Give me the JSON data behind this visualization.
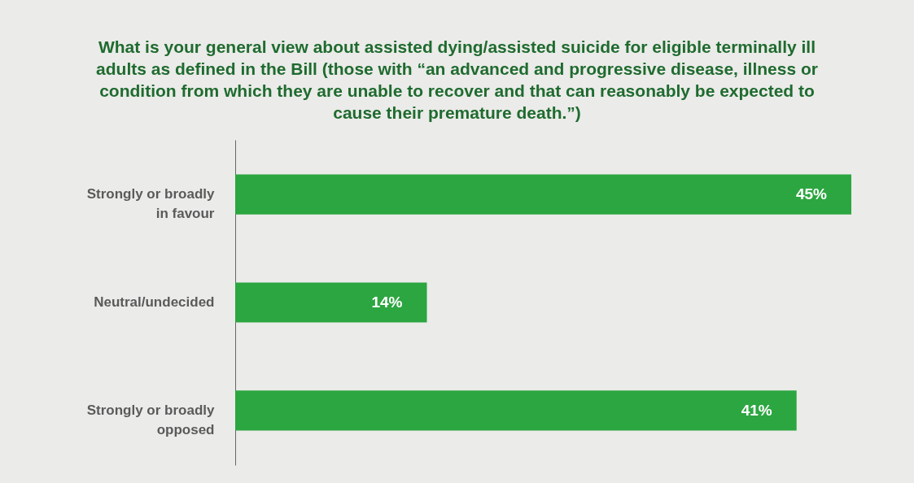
{
  "chart_data": {
    "type": "bar",
    "orientation": "horizontal",
    "title": "What is your general view about assisted dying/assisted suicide for eligible terminally ill adults as defined in the Bill (those with “an advanced and progressive disease, illness or condition from which they are unable to recover and that can reasonably be expected to cause their premature death.”)",
    "categories": [
      "Strongly or broadly in favour",
      "Neutral/undecided",
      "Strongly or broadly opposed"
    ],
    "values": [
      45,
      14,
      41
    ],
    "color": "#2ca640",
    "value_labels": [
      "45%",
      "14%",
      "41%"
    ]
  }
}
